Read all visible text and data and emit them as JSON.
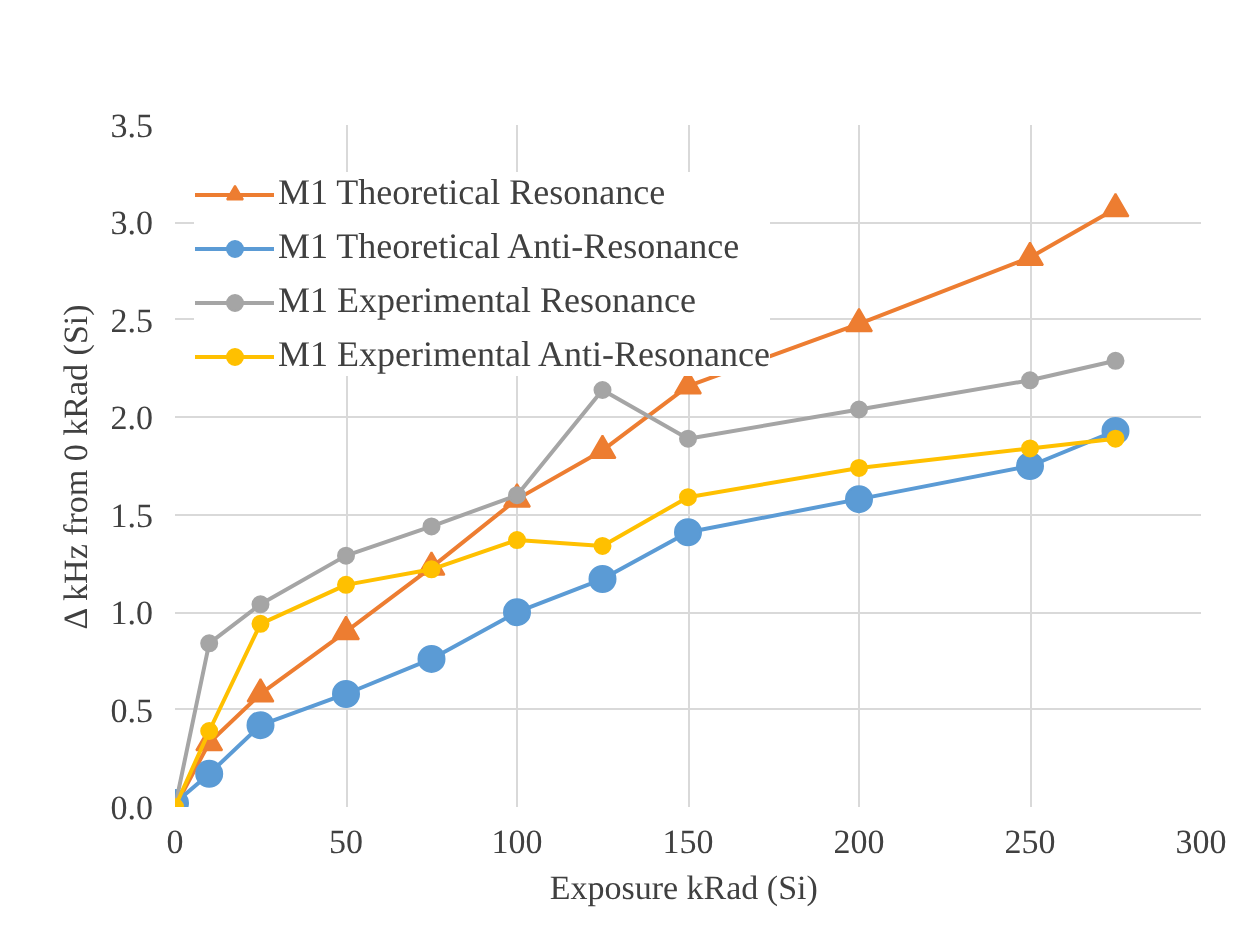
{
  "chart_data": {
    "type": "line",
    "xlabel": "Exposure kRad  (Si)",
    "ylabel": "Δ kHz from 0 kRad (Si)",
    "x": [
      0,
      10,
      25,
      50,
      75,
      100,
      125,
      150,
      200,
      250,
      275
    ],
    "xlim": [
      0,
      300
    ],
    "xticks": [
      0,
      50,
      100,
      150,
      200,
      250,
      300
    ],
    "ylim": [
      0,
      3.5
    ],
    "yticks": [
      {
        "value": 0,
        "label": "0.0"
      },
      {
        "value": 0.5,
        "label": "0.5"
      },
      {
        "value": 1,
        "label": "1.0"
      },
      {
        "value": 1.5,
        "label": "1.5"
      },
      {
        "value": 2,
        "label": "2.0"
      },
      {
        "value": 2.5,
        "label": "2.5"
      },
      {
        "value": 3,
        "label": "3.0"
      },
      {
        "value": 3.5,
        "label": "3.5"
      }
    ],
    "grid": true,
    "legend": "top left",
    "series": [
      {
        "name": "M1 Theoretical Resonance",
        "color": "#ed7d31",
        "marker": "triangle",
        "values": [
          0,
          0.33,
          0.58,
          0.9,
          1.23,
          1.58,
          1.83,
          2.16,
          2.48,
          2.82,
          3.07
        ]
      },
      {
        "name": "M1 Theoretical Anti-Resonance",
        "color": "#5b9bd5",
        "marker": "circle",
        "values": [
          0.02,
          0.17,
          0.42,
          0.58,
          0.76,
          1.0,
          1.17,
          1.41,
          1.58,
          1.75,
          1.93
        ]
      },
      {
        "name": "M1 Experimental Resonance",
        "color": "#a5a5a5",
        "marker": "circle",
        "values": [
          0,
          0.84,
          1.04,
          1.29,
          1.44,
          1.6,
          2.14,
          1.89,
          2.04,
          2.19,
          2.29
        ]
      },
      {
        "name": "M1 Experimental Anti-Resonance",
        "color": "#ffc000",
        "marker": "circle",
        "values": [
          0,
          0.39,
          0.94,
          1.14,
          1.22,
          1.37,
          1.34,
          1.59,
          1.74,
          1.84,
          1.89
        ]
      }
    ]
  }
}
